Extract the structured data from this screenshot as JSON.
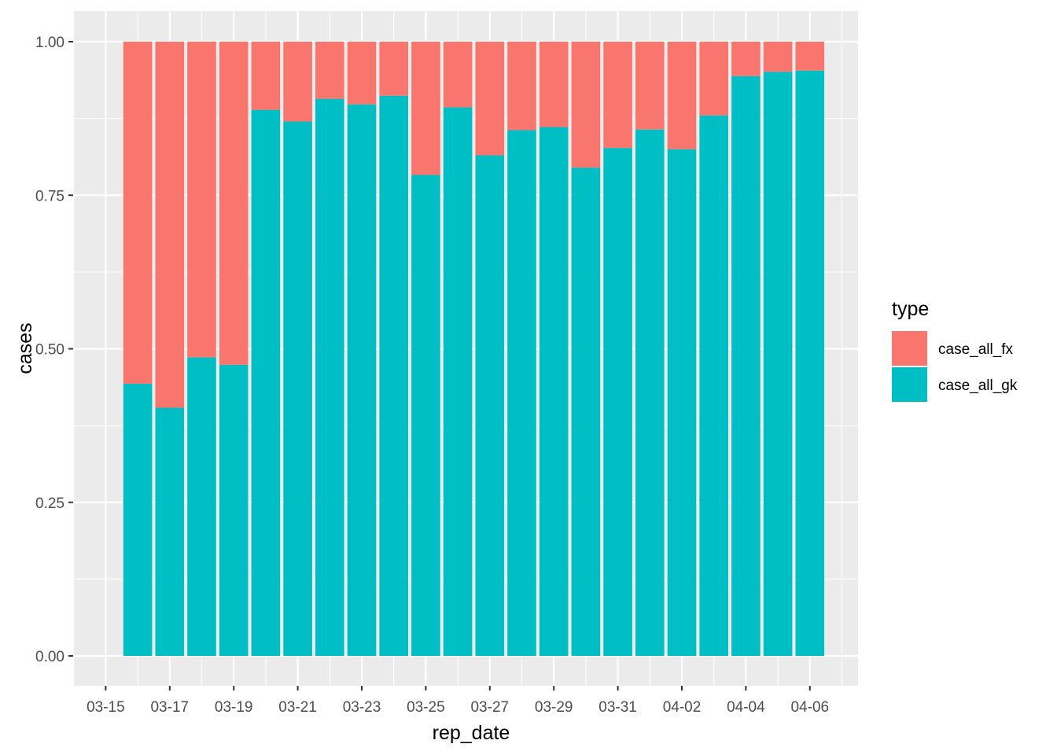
{
  "chart_data": {
    "type": "bar",
    "stacked": true,
    "position": "fill",
    "xlabel": "rep_date",
    "ylabel": "cases",
    "ylim": [
      0,
      1
    ],
    "yticks": [
      "0.00",
      "0.25",
      "0.50",
      "0.75",
      "1.00"
    ],
    "xticks": [
      "03-15",
      "03-17",
      "03-19",
      "03-21",
      "03-23",
      "03-25",
      "03-27",
      "03-29",
      "03-31",
      "04-02",
      "04-04",
      "04-06"
    ],
    "categories": [
      "03-16",
      "03-17",
      "03-18",
      "03-19",
      "03-20",
      "03-21",
      "03-22",
      "03-23",
      "03-24",
      "03-25",
      "03-26",
      "03-27",
      "03-28",
      "03-29",
      "03-30",
      "03-31",
      "04-01",
      "04-02",
      "04-03",
      "04-04",
      "04-05",
      "04-06"
    ],
    "legend": {
      "title": "type",
      "placement": "right"
    },
    "series": [
      {
        "name": "case_all_gk",
        "color": "#00BFC4",
        "values": [
          0.443,
          0.404,
          0.486,
          0.474,
          0.889,
          0.87,
          0.907,
          0.898,
          0.912,
          0.783,
          0.893,
          0.815,
          0.856,
          0.861,
          0.795,
          0.827,
          0.857,
          0.825,
          0.88,
          0.944,
          0.951,
          0.953
        ]
      },
      {
        "name": "case_all_fx",
        "color": "#F8766D",
        "values": [
          0.557,
          0.596,
          0.514,
          0.526,
          0.111,
          0.13,
          0.093,
          0.102,
          0.088,
          0.217,
          0.107,
          0.185,
          0.144,
          0.139,
          0.205,
          0.173,
          0.143,
          0.175,
          0.12,
          0.056,
          0.049,
          0.047
        ]
      }
    ]
  }
}
